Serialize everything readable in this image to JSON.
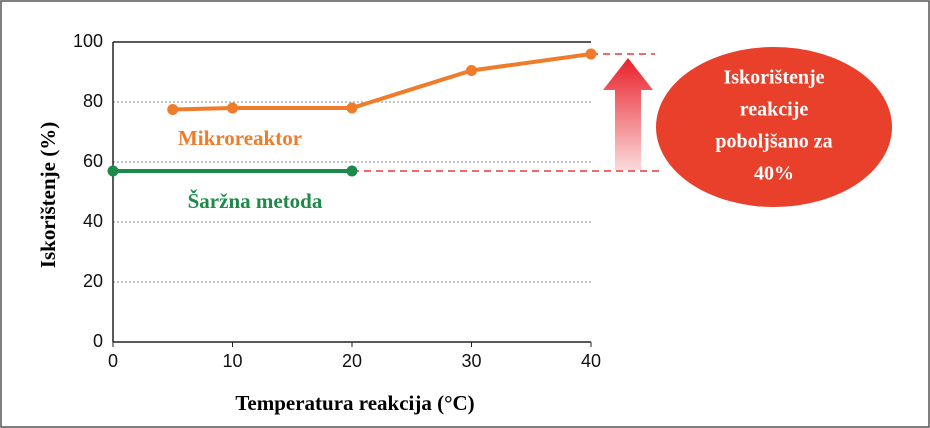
{
  "chart_data": {
    "type": "line",
    "x_label": "Temperatura reakcija (°C)",
    "y_label": "Iskorištenje   (%)",
    "xlim": [
      0,
      40
    ],
    "xticks": [
      0,
      10,
      20,
      30,
      40
    ],
    "ylim": [
      0,
      100
    ],
    "yticks": [
      0,
      20,
      40,
      60,
      80,
      100
    ],
    "grid": true,
    "series": [
      {
        "name": "Mikroreaktor",
        "color": "#f07b2a",
        "x": [
          5,
          10,
          20,
          30,
          40
        ],
        "values": [
          77.5,
          78,
          78,
          90.5,
          96
        ]
      },
      {
        "name": "Šaržna metoda",
        "color": "#1e8a4a",
        "x": [
          0,
          20
        ],
        "values": [
          57,
          57
        ]
      }
    ],
    "annotation": [
      "Iskorištenje",
      "reakcije",
      "poboljšano za",
      "40%"
    ],
    "annotation_color": "#e8402a"
  }
}
